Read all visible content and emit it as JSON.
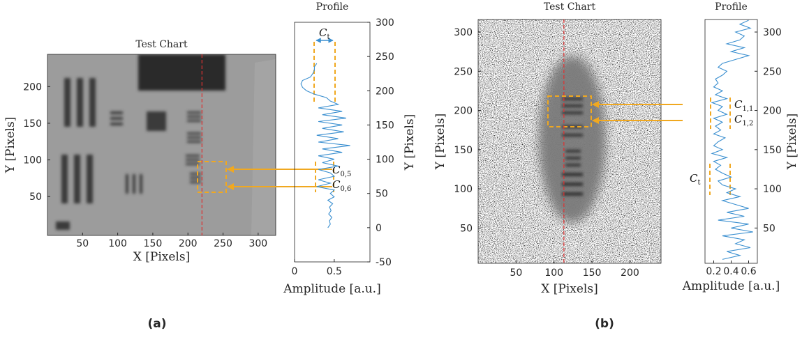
{
  "chart_data": [
    {
      "type": "image",
      "title": "Test Chart",
      "xlabel": "X [Pixels]",
      "ylabel": "Y [Pixels]",
      "xlim": [
        0,
        325
      ],
      "ylim": [
        -3,
        244
      ],
      "xticks": [
        50,
        100,
        150,
        200,
        250,
        300
      ],
      "yticks": [
        50,
        100,
        150,
        200
      ],
      "cut_x": 220,
      "cut_color": "#e03030"
    },
    {
      "type": "line",
      "title": "Profile",
      "xlabel": "Amplitude [a.u.]",
      "ylabel": "Y [Pixels]",
      "xlim": [
        0,
        0.95
      ],
      "ylim": [
        -50,
        300
      ],
      "xticks": [
        0,
        0.5
      ],
      "yticks": [
        -50,
        0,
        50,
        100,
        150,
        200,
        250,
        300
      ],
      "color": "#3a8fd0",
      "x": [
        240,
        235,
        230,
        225,
        220,
        215,
        210,
        205,
        200,
        195,
        190,
        185,
        180,
        175,
        170,
        165,
        160,
        155,
        150,
        145,
        140,
        135,
        130,
        125,
        120,
        115,
        110,
        105,
        100,
        95,
        90,
        85,
        80,
        75,
        70,
        65,
        60,
        55,
        50,
        45,
        40,
        35,
        30,
        25,
        20,
        15,
        10,
        5,
        0
      ],
      "values": [
        0.28,
        0.25,
        0.25,
        0.23,
        0.2,
        0.1,
        0.08,
        0.1,
        0.15,
        0.25,
        0.4,
        0.45,
        0.55,
        0.3,
        0.6,
        0.35,
        0.65,
        0.3,
        0.6,
        0.35,
        0.62,
        0.28,
        0.55,
        0.3,
        0.7,
        0.35,
        0.6,
        0.3,
        0.5,
        0.35,
        0.55,
        0.3,
        0.45,
        0.5,
        0.3,
        0.45,
        0.28,
        0.5,
        0.45,
        0.5,
        0.42,
        0.48,
        0.44,
        0.46,
        0.43,
        0.47,
        0.44,
        0.45,
        0.42
      ],
      "annotations": [
        {
          "text": "C",
          "sub": "t"
        },
        {
          "text": "C",
          "sub": "0,5"
        },
        {
          "text": "C",
          "sub": "0,6"
        }
      ]
    },
    {
      "type": "image",
      "title": "Test Chart",
      "xlabel": "X [Pixels]",
      "ylabel": "Y [Pixels]",
      "xlim": [
        0,
        241
      ],
      "ylim": [
        5,
        316
      ],
      "xticks": [
        50,
        100,
        150,
        200
      ],
      "yticks": [
        50,
        100,
        150,
        200,
        250,
        300
      ],
      "cut_x": 113,
      "cut_color": "#e03030"
    },
    {
      "type": "line",
      "title": "Profile",
      "xlabel": "Amplitude [a.u.]",
      "ylabel": "Y [Pixels]",
      "xlim": [
        0.1,
        0.7
      ],
      "ylim": [
        5,
        316
      ],
      "xticks": [
        0.2,
        0.4,
        0.6
      ],
      "yticks": [
        50,
        100,
        150,
        200,
        250,
        300
      ],
      "color": "#3a8fd0",
      "x": [
        315,
        310,
        305,
        300,
        295,
        290,
        285,
        280,
        275,
        270,
        265,
        260,
        255,
        250,
        245,
        240,
        235,
        230,
        225,
        220,
        215,
        210,
        205,
        200,
        195,
        190,
        185,
        180,
        175,
        170,
        165,
        160,
        155,
        150,
        145,
        140,
        135,
        130,
        125,
        120,
        115,
        110,
        105,
        100,
        95,
        90,
        85,
        80,
        75,
        70,
        65,
        60,
        55,
        50,
        45,
        40,
        35,
        30,
        25,
        20,
        15,
        10
      ],
      "values": [
        0.6,
        0.5,
        0.62,
        0.45,
        0.55,
        0.5,
        0.35,
        0.55,
        0.4,
        0.6,
        0.45,
        0.3,
        0.25,
        0.35,
        0.3,
        0.22,
        0.25,
        0.2,
        0.3,
        0.22,
        0.35,
        0.18,
        0.3,
        0.25,
        0.35,
        0.2,
        0.3,
        0.22,
        0.28,
        0.2,
        0.33,
        0.25,
        0.2,
        0.3,
        0.18,
        0.35,
        0.2,
        0.28,
        0.22,
        0.3,
        0.4,
        0.25,
        0.3,
        0.45,
        0.35,
        0.5,
        0.3,
        0.45,
        0.6,
        0.35,
        0.55,
        0.25,
        0.6,
        0.4,
        0.65,
        0.3,
        0.55,
        0.45,
        0.62,
        0.35,
        0.5,
        0.3
      ],
      "annotations": [
        {
          "text": "C",
          "sub": "1,1"
        },
        {
          "text": "C",
          "sub": "1,2"
        },
        {
          "text": "C",
          "sub": "t"
        }
      ]
    }
  ],
  "captions": [
    "(a)",
    "(b)"
  ]
}
